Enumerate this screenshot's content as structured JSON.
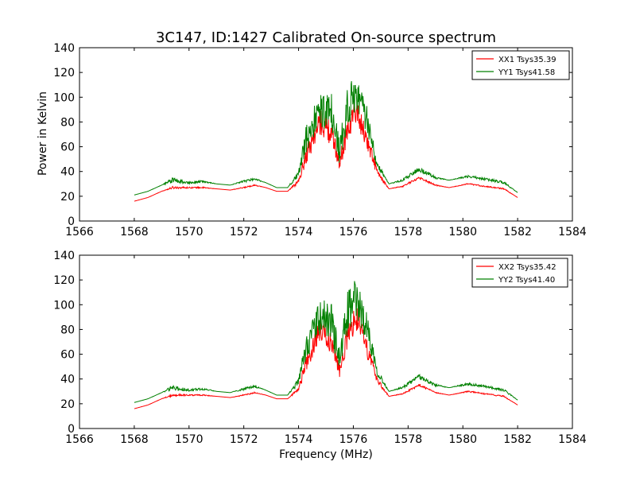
{
  "title": "3C147, ID:1427 Calibrated On-source spectrum",
  "ylabel": "Power in Kelvin",
  "xlabel": "Frequency (MHz)",
  "colors": {
    "xx": "#ff0000",
    "yy": "#008000"
  },
  "chart_data": [
    {
      "type": "line",
      "xlim": [
        1566,
        1584
      ],
      "ylim": [
        0,
        140
      ],
      "xticks": [
        1566,
        1568,
        1570,
        1572,
        1574,
        1576,
        1578,
        1580,
        1582,
        1584
      ],
      "yticks": [
        0,
        20,
        40,
        60,
        80,
        100,
        120,
        140
      ],
      "grid": false,
      "legend_position": "top-right",
      "x": [
        1568.0,
        1568.5,
        1569.0,
        1569.4,
        1570.0,
        1570.5,
        1571.0,
        1571.5,
        1572.0,
        1572.4,
        1572.8,
        1573.2,
        1573.6,
        1574.0,
        1574.3,
        1574.8,
        1575.2,
        1575.5,
        1575.8,
        1576.1,
        1576.5,
        1576.9,
        1577.3,
        1577.8,
        1578.4,
        1579.0,
        1579.5,
        1580.2,
        1580.8,
        1581.5,
        1582.0
      ],
      "series": [
        {
          "name": "XX1 Tsys35.39",
          "color": "#ff0000",
          "values": [
            16,
            19,
            24,
            27,
            27,
            27,
            26,
            25,
            27,
            29,
            27,
            24,
            24,
            32,
            55,
            80,
            70,
            47,
            75,
            90,
            65,
            38,
            26,
            28,
            35,
            29,
            27,
            30,
            28,
            26,
            19
          ],
          "noise": [
            0,
            0,
            0,
            1,
            0.5,
            0.5,
            0,
            0,
            0.5,
            0.5,
            0,
            0,
            0,
            2,
            8,
            10,
            10,
            6,
            10,
            10,
            8,
            3,
            0,
            0.5,
            1,
            0.5,
            0,
            0.5,
            0.5,
            0.5,
            0
          ]
        },
        {
          "name": "YY1 Tsys41.58",
          "color": "#008000",
          "values": [
            21,
            24,
            29,
            33,
            31,
            32,
            30,
            29,
            32,
            34,
            31,
            27,
            27,
            38,
            68,
            90,
            87,
            55,
            95,
            105,
            82,
            45,
            30,
            33,
            42,
            35,
            33,
            36,
            34,
            31,
            23
          ],
          "noise": [
            0,
            0,
            0,
            2,
            1,
            1,
            0,
            0,
            1,
            1,
            0,
            0,
            0,
            3,
            12,
            14,
            16,
            10,
            18,
            16,
            12,
            4,
            0,
            1,
            2,
            1,
            0,
            1,
            1,
            1,
            0
          ]
        }
      ]
    },
    {
      "type": "line",
      "xlim": [
        1566,
        1584
      ],
      "ylim": [
        0,
        140
      ],
      "xticks": [
        1566,
        1568,
        1570,
        1572,
        1574,
        1576,
        1578,
        1580,
        1582,
        1584
      ],
      "yticks": [
        0,
        20,
        40,
        60,
        80,
        100,
        120,
        140
      ],
      "grid": false,
      "legend_position": "top-right",
      "x": [
        1568.0,
        1568.5,
        1569.0,
        1569.4,
        1570.0,
        1570.5,
        1571.0,
        1571.5,
        1572.0,
        1572.4,
        1572.8,
        1573.2,
        1573.6,
        1574.0,
        1574.3,
        1574.8,
        1575.2,
        1575.5,
        1575.8,
        1576.1,
        1576.5,
        1576.9,
        1577.3,
        1577.8,
        1578.4,
        1579.0,
        1579.5,
        1580.2,
        1580.8,
        1581.5,
        1582.0
      ],
      "series": [
        {
          "name": "XX2 Tsys35.42",
          "color": "#ff0000",
          "values": [
            16,
            19,
            24,
            27,
            27,
            27,
            26,
            25,
            27,
            29,
            27,
            24,
            24,
            32,
            55,
            80,
            70,
            47,
            75,
            90,
            65,
            38,
            26,
            28,
            35,
            29,
            27,
            30,
            28,
            26,
            19
          ],
          "noise": [
            0,
            0,
            0,
            1,
            0.5,
            0.5,
            0,
            0,
            0.5,
            0.5,
            0,
            0,
            0,
            2,
            8,
            10,
            10,
            6,
            10,
            10,
            8,
            3,
            0,
            0.5,
            1,
            0.5,
            0,
            0.5,
            0.5,
            0.5,
            0
          ]
        },
        {
          "name": "YY2 Tsys41.40",
          "color": "#008000",
          "values": [
            21,
            24,
            29,
            33,
            31,
            32,
            30,
            29,
            32,
            34,
            31,
            27,
            27,
            38,
            68,
            90,
            87,
            55,
            95,
            105,
            82,
            45,
            30,
            33,
            42,
            35,
            33,
            36,
            34,
            31,
            23
          ],
          "noise": [
            0,
            0,
            0,
            2,
            1,
            1,
            0,
            0,
            1,
            1,
            0,
            0,
            0,
            3,
            12,
            14,
            16,
            10,
            18,
            16,
            12,
            4,
            0,
            1,
            2,
            1,
            0,
            1,
            1,
            1,
            0
          ]
        }
      ]
    }
  ]
}
